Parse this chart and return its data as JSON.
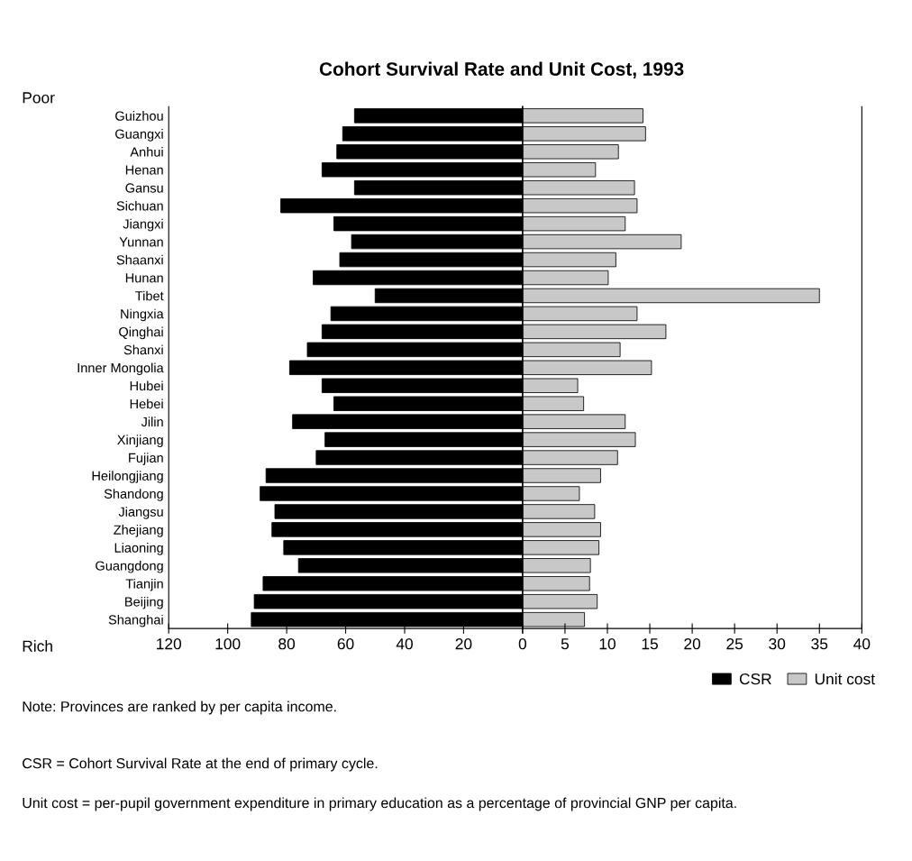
{
  "chart_data": [
    {
      "type": "bar",
      "orientation": "horizontal",
      "title": "Cohort Survival Rate and Unit Cost, 1993",
      "categories": [
        "Guizhou",
        "Guangxi",
        "Anhui",
        "Henan",
        "Gansu",
        "Sichuan",
        "Jiangxi",
        "Yunnan",
        "Shaanxi",
        "Hunan",
        "Tibet",
        "Ningxia",
        "Qinghai",
        "Shanxi",
        "Inner Mongolia",
        "Hubei",
        "Hebei",
        "Jilin",
        "Xinjiang",
        "Fujian",
        "Heilongjiang",
        "Shandong",
        "Jiangsu",
        "Zhejiang",
        "Liaoning",
        "Guangdong",
        "Tianjin",
        "Beijing",
        "Shanghai"
      ],
      "series": [
        {
          "name": "CSR",
          "color": "#000000",
          "values": [
            57,
            61,
            63,
            68,
            57,
            82,
            64,
            58,
            62,
            71,
            50,
            65,
            68,
            73,
            79,
            68,
            64,
            78,
            67,
            70,
            87,
            89,
            84,
            85,
            81,
            76,
            88,
            91,
            92
          ]
        }
      ],
      "xlim": [
        120,
        0
      ],
      "xticks": [
        120,
        100,
        80,
        60,
        40,
        20,
        0
      ],
      "grid": false,
      "legend": "bottom right",
      "annotations": [
        "Poor",
        "Rich",
        "Note: Provinces are ranked by per capita income.",
        "CSR = Cohort Survival Rate at the end of primary cycle.",
        "Unit cost = per-pupil government expenditure in primary education as a percentage of provincial GNP per capita."
      ]
    },
    {
      "type": "bar",
      "orientation": "horizontal",
      "categories": [
        null,
        null,
        null,
        null,
        null,
        null,
        null,
        null,
        null,
        null,
        null,
        null,
        null,
        null,
        null,
        null,
        null,
        null,
        null,
        null,
        null,
        null,
        null,
        null,
        null,
        null,
        null,
        null,
        null
      ],
      "series": [
        {
          "name": "Unit cost",
          "color": "#c8c8c8",
          "values": [
            14.2,
            14.5,
            11.3,
            8.6,
            13.2,
            13.5,
            12.1,
            18.7,
            11.0,
            10.1,
            35,
            13.5,
            16.9,
            11.5,
            15.2,
            6.5,
            7.2,
            12.1,
            13.3,
            11.2,
            9.2,
            6.7,
            8.5,
            9.2,
            9.0,
            8.0,
            7.9,
            8.8,
            7.3
          ]
        }
      ],
      "xlim": [
        0,
        40
      ],
      "xticks": [
        {
          "value": 0,
          "label": null
        },
        5,
        10,
        15,
        20,
        25,
        30,
        35,
        40
      ],
      "tick_labels": "x",
      "grid": false,
      "legend": "bottom right"
    }
  ]
}
